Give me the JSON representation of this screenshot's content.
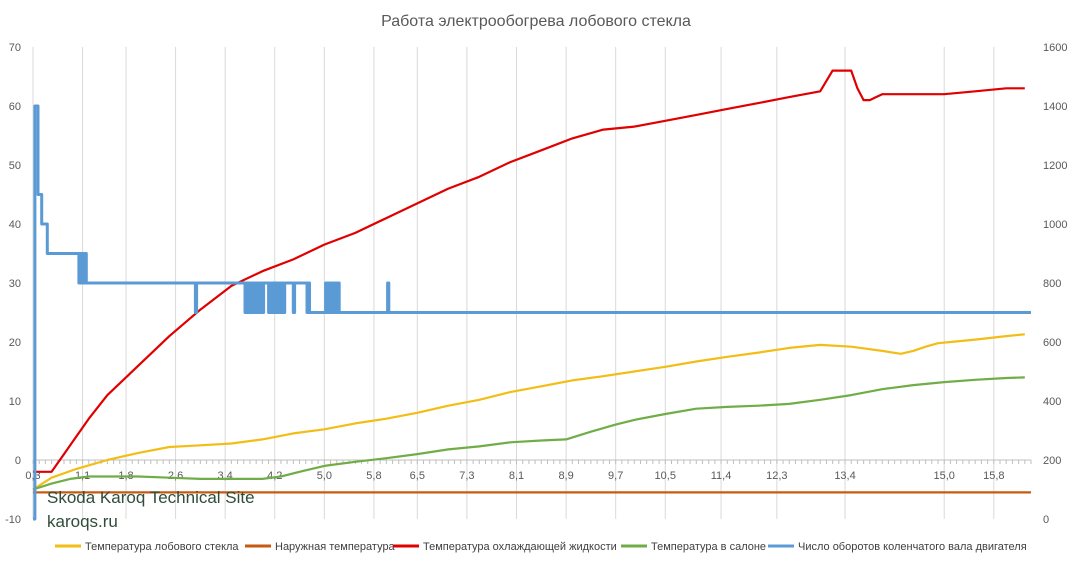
{
  "chart_data": {
    "type": "line",
    "title": "Работа электрообогрева лобового стекла",
    "xlabel": "",
    "ylabel": "",
    "x_tick_labels": [
      "0,3",
      "1,1",
      "1,8",
      "2,6",
      "3,4",
      "4,2",
      "5,0",
      "5,8",
      "6,5",
      "7,3",
      "8,1",
      "8,9",
      "9,7",
      "10,5",
      "11,4",
      "12,3",
      "13,4",
      "15,0",
      "15,8"
    ],
    "x_tick_values": [
      0.3,
      1.1,
      1.8,
      2.6,
      3.4,
      4.2,
      5.0,
      5.8,
      6.5,
      7.3,
      8.1,
      8.9,
      9.7,
      10.5,
      11.4,
      12.3,
      13.4,
      15.0,
      15.8
    ],
    "xlim": [
      0.3,
      16.4
    ],
    "ylim": [
      -10,
      70
    ],
    "y_ticks": [
      -10,
      0,
      10,
      20,
      30,
      40,
      50,
      60,
      70
    ],
    "y2lim": [
      0,
      1600
    ],
    "y2_ticks": [
      0,
      200,
      400,
      600,
      800,
      1000,
      1200,
      1400,
      1600
    ],
    "legend_position": "bottom",
    "grid": "vertical",
    "series": [
      {
        "name": "Температура лобового стекла",
        "axis": "left",
        "color": "#f2bd14",
        "x": [
          0.3,
          0.6,
          1.0,
          1.5,
          2.0,
          2.5,
          3.0,
          3.5,
          4.0,
          4.5,
          5.0,
          5.5,
          6.0,
          6.5,
          7.0,
          7.5,
          8.0,
          8.5,
          9.0,
          9.5,
          10.0,
          10.5,
          11.0,
          11.5,
          12.0,
          12.5,
          13.0,
          13.5,
          14.0,
          14.3,
          14.5,
          14.7,
          14.9,
          15.1,
          15.5,
          16.0,
          16.3
        ],
        "y": [
          -5,
          -3,
          -1.5,
          0,
          1.2,
          2.2,
          2.5,
          2.8,
          3.5,
          4.5,
          5.2,
          6.2,
          7,
          8,
          9.2,
          10.2,
          11.5,
          12.5,
          13.5,
          14.2,
          15,
          15.8,
          16.7,
          17.5,
          18.2,
          19,
          19.5,
          19.2,
          18.5,
          18,
          18.5,
          19.2,
          19.8,
          20,
          20.4,
          21,
          21.3
        ]
      },
      {
        "name": "Наружная температура",
        "axis": "left",
        "color": "#c55a11",
        "x": [
          0.3,
          16.4
        ],
        "y": [
          -5.5,
          -5.5
        ]
      },
      {
        "name": "Температура охлаждающей жидкости",
        "axis": "left",
        "color": "#e00000",
        "x": [
          0.3,
          0.6,
          0.8,
          1.0,
          1.2,
          1.5,
          2.0,
          2.5,
          3.0,
          3.5,
          4.0,
          4.5,
          5.0,
          5.5,
          6.0,
          6.5,
          7.0,
          7.5,
          8.0,
          8.5,
          9.0,
          9.5,
          10.0,
          10.5,
          11.0,
          11.5,
          12.0,
          12.5,
          13.0,
          13.2,
          13.5,
          13.6,
          13.7,
          13.8,
          13.9,
          14.0,
          14.5,
          15.0,
          15.5,
          16.0,
          16.3
        ],
        "y": [
          -2,
          -2,
          1,
          4,
          7,
          11,
          16,
          21,
          25.5,
          29.5,
          32,
          34,
          36.5,
          38.5,
          41,
          43.5,
          46,
          48,
          50.5,
          52.5,
          54.5,
          56,
          56.5,
          57.5,
          58.5,
          59.5,
          60.5,
          61.5,
          62.5,
          66,
          66,
          63,
          61,
          61,
          61.5,
          62,
          62,
          62,
          62.5,
          63,
          63
        ]
      },
      {
        "name": "Температура в салоне",
        "axis": "left",
        "color": "#70ad47",
        "x": [
          0.3,
          0.6,
          0.9,
          1.2,
          1.5,
          2.0,
          2.5,
          3.0,
          3.5,
          4.0,
          4.3,
          4.6,
          5.0,
          5.5,
          6.0,
          6.5,
          7.0,
          7.5,
          8.0,
          8.5,
          8.9,
          9.3,
          9.7,
          10.0,
          10.5,
          11.0,
          11.5,
          12.0,
          12.5,
          13.0,
          13.5,
          14.0,
          14.5,
          15.0,
          15.5,
          16.0,
          16.3
        ],
        "y": [
          -5,
          -4,
          -3.2,
          -2.8,
          -2.8,
          -2.8,
          -3,
          -3.2,
          -3.2,
          -3.2,
          -2.8,
          -2,
          -1,
          -0.3,
          0.3,
          1,
          1.8,
          2.3,
          3,
          3.3,
          3.5,
          4.8,
          6,
          6.8,
          7.8,
          8.7,
          9,
          9.2,
          9.5,
          10.2,
          11,
          12,
          12.7,
          13.2,
          13.6,
          13.9,
          14
        ]
      },
      {
        "name": "Число оборотов коленчатого вала двигателя",
        "axis": "right",
        "color": "#5b9bd5",
        "x": [
          0.3,
          0.33,
          0.35,
          0.38,
          0.41,
          0.44,
          0.47,
          0.5,
          0.53,
          0.56,
          0.6,
          0.65,
          0.7,
          0.75,
          0.8,
          0.85,
          1.02,
          1.04,
          1.06,
          1.08,
          1.1,
          1.12,
          1.14,
          1.16,
          1.18,
          2.9,
          2.92,
          2.94,
          2.96,
          3.7,
          3.72,
          3.74,
          3.76,
          3.78,
          3.8,
          3.82,
          3.84,
          3.86,
          3.88,
          3.9,
          3.92,
          3.94,
          3.96,
          3.98,
          4.0,
          4.02,
          4.04,
          4.06,
          4.08,
          4.1,
          4.12,
          4.14,
          4.16,
          4.18,
          4.2,
          4.22,
          4.24,
          4.26,
          4.28,
          4.3,
          4.32,
          4.34,
          4.36,
          4.38,
          4.4,
          4.42,
          4.44,
          4.46,
          4.48,
          4.5,
          4.52,
          4.7,
          4.72,
          4.74,
          4.76,
          5.0,
          5.02,
          5.04,
          5.06,
          5.08,
          5.1,
          5.12,
          5.14,
          5.16,
          5.18,
          5.2,
          5.22,
          5.24,
          5.26,
          5.28,
          5.3,
          6.0,
          6.02,
          6.04,
          6.06,
          6.08,
          16.4
        ],
        "y": [
          0,
          1400,
          1400,
          1100,
          1100,
          1000,
          1000,
          1000,
          900,
          900,
          900,
          900,
          900,
          900,
          900,
          900,
          900,
          800,
          900,
          800,
          900,
          800,
          900,
          800,
          800,
          800,
          700,
          800,
          800,
          800,
          700,
          800,
          700,
          800,
          700,
          800,
          700,
          800,
          700,
          800,
          700,
          800,
          700,
          800,
          700,
          800,
          800,
          800,
          800,
          700,
          800,
          700,
          800,
          700,
          800,
          700,
          800,
          700,
          800,
          700,
          800,
          700,
          800,
          800,
          800,
          800,
          800,
          800,
          800,
          700,
          800,
          800,
          700,
          800,
          700,
          700,
          800,
          700,
          800,
          700,
          800,
          700,
          800,
          700,
          800,
          700,
          800,
          700,
          700,
          700,
          700,
          700,
          800,
          700,
          700,
          700,
          700
        ]
      }
    ]
  },
  "watermark": {
    "title": "Skoda Karoq Technical Site",
    "site": "karoqs.ru"
  }
}
